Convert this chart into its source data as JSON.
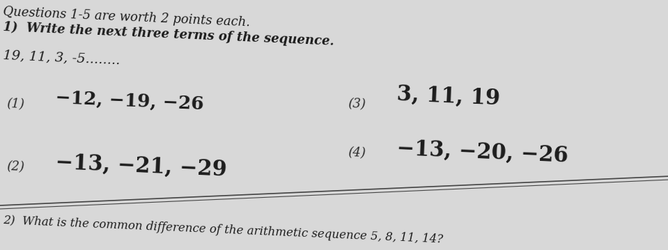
{
  "bg_color": "#d8d8d8",
  "header_line1": "Questions 1-5 are worth 2 points each.",
  "header_line2": "1)  Write the next three terms of the sequence.",
  "sequence": "19, 11, 3, -5⋯⋯⋯⋯",
  "sequence_dots": "19, 11, 3, -5........",
  "option1_label": "(1)",
  "option1_text": "−12, −19, −26",
  "option2_label": "(2)",
  "option2_text": "−13, −21, −29",
  "option3_label": "(3)",
  "option3_text": "3, 11, 19",
  "option4_label": "(4)",
  "option4_text": "−13, −20, −26",
  "footer_line1": "2)  What is the common difference of the arithmetic sequence 5, 8, 11, 14?",
  "text_color": "#1c1c1c",
  "label_color": "#2a2a2a",
  "line_color": "#444444",
  "tilt_deg": -2.5,
  "font_size_header": 13,
  "font_size_sequence": 14,
  "font_size_options_label": 13,
  "font_size_options_text": 19,
  "font_size_footer": 12
}
